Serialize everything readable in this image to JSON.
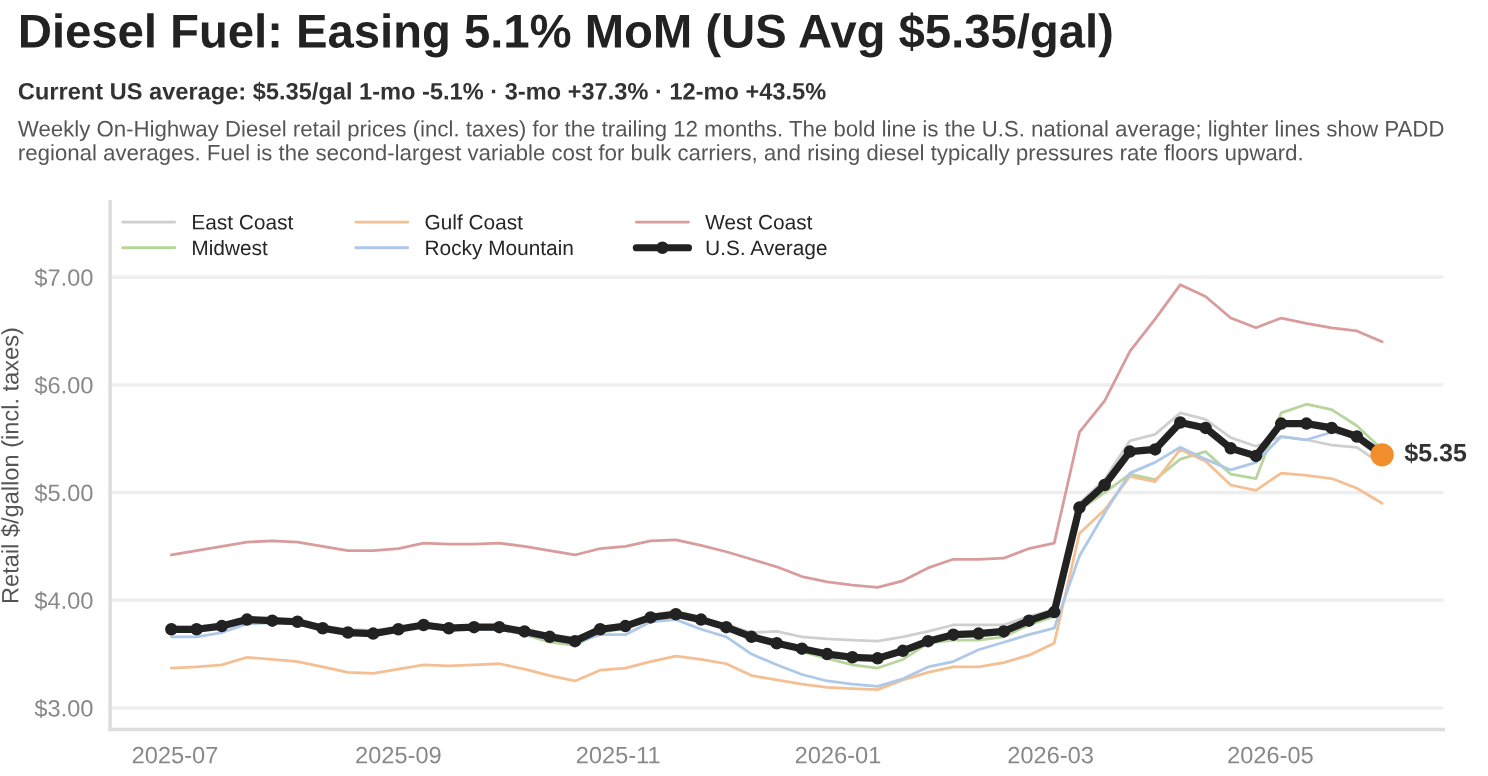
{
  "chart_data": {
    "type": "line",
    "title": "Diesel Fuel: Easing 5.1% MoM (US Avg $5.35/gal)",
    "subtitle": "Current US average: $5.35/gal 1-mo -5.1% · 3-mo +37.3% · 12-mo +43.5%",
    "annotations": [
      "Weekly On-Highway Diesel retail prices (incl. taxes) for the trailing 12 months. The bold line is the U.S. national average; lighter lines show PADD regional averages. Fuel is the second-largest variable cost for bulk carriers, and rising diesel typically pressures rate floors upward."
    ],
    "ylabel": "Retail $/gallon (incl. taxes)",
    "x": [
      "2025-06-30",
      "2025-07-07",
      "2025-07-14",
      "2025-07-21",
      "2025-07-28",
      "2025-08-04",
      "2025-08-11",
      "2025-08-18",
      "2025-08-25",
      "2025-09-01",
      "2025-09-08",
      "2025-09-15",
      "2025-09-22",
      "2025-09-29",
      "2025-10-06",
      "2025-10-13",
      "2025-10-20",
      "2025-10-27",
      "2025-11-03",
      "2025-11-10",
      "2025-11-17",
      "2025-11-24",
      "2025-12-01",
      "2025-12-08",
      "2025-12-15",
      "2025-12-22",
      "2025-12-29",
      "2026-01-05",
      "2026-01-12",
      "2026-01-19",
      "2026-01-26",
      "2026-02-02",
      "2026-02-09",
      "2026-02-16",
      "2026-02-23",
      "2026-03-02",
      "2026-03-09",
      "2026-03-16",
      "2026-03-23",
      "2026-03-30",
      "2026-04-06",
      "2026-04-13",
      "2026-04-20",
      "2026-04-27",
      "2026-05-04",
      "2026-05-11",
      "2026-05-18",
      "2026-05-25",
      "2026-06-01"
    ],
    "series": [
      {
        "name": "East Coast",
        "color": "#cfcfcf",
        "values": [
          3.75,
          3.75,
          3.78,
          3.83,
          3.82,
          3.81,
          3.76,
          3.73,
          3.72,
          3.75,
          3.78,
          3.76,
          3.76,
          3.76,
          3.72,
          3.68,
          3.65,
          3.74,
          3.77,
          3.85,
          3.87,
          3.83,
          3.77,
          3.7,
          3.71,
          3.66,
          3.64,
          3.63,
          3.62,
          3.66,
          3.71,
          3.77,
          3.77,
          3.77,
          3.85,
          3.91,
          4.9,
          5.12,
          5.48,
          5.54,
          5.74,
          5.68,
          5.51,
          5.43,
          5.52,
          5.49,
          5.44,
          5.42,
          5.26
        ]
      },
      {
        "name": "Midwest",
        "color": "#b7d59c",
        "values": [
          3.72,
          3.73,
          3.75,
          3.8,
          3.8,
          3.79,
          3.74,
          3.71,
          3.71,
          3.73,
          3.76,
          3.74,
          3.74,
          3.74,
          3.68,
          3.61,
          3.58,
          3.7,
          3.74,
          3.86,
          3.9,
          3.84,
          3.76,
          3.67,
          3.59,
          3.52,
          3.46,
          3.4,
          3.37,
          3.45,
          3.6,
          3.63,
          3.63,
          3.66,
          3.77,
          3.85,
          4.84,
          5.0,
          5.17,
          5.12,
          5.31,
          5.38,
          5.17,
          5.13,
          5.74,
          5.82,
          5.77,
          5.62,
          5.4
        ]
      },
      {
        "name": "Gulf Coast",
        "color": "#f5bf94",
        "values": [
          3.37,
          3.38,
          3.4,
          3.47,
          3.45,
          3.43,
          3.38,
          3.33,
          3.32,
          3.36,
          3.4,
          3.39,
          3.4,
          3.41,
          3.36,
          3.3,
          3.25,
          3.35,
          3.37,
          3.43,
          3.48,
          3.45,
          3.41,
          3.3,
          3.26,
          3.22,
          3.19,
          3.18,
          3.17,
          3.26,
          3.33,
          3.38,
          3.38,
          3.42,
          3.49,
          3.6,
          4.62,
          4.84,
          5.15,
          5.1,
          5.4,
          5.29,
          5.07,
          5.02,
          5.18,
          5.16,
          5.13,
          5.04,
          4.9
        ]
      },
      {
        "name": "Rocky Mountain",
        "color": "#adc8e8",
        "values": [
          3.66,
          3.66,
          3.7,
          3.78,
          3.79,
          3.78,
          3.73,
          3.7,
          3.7,
          3.72,
          3.76,
          3.73,
          3.73,
          3.73,
          3.68,
          3.64,
          3.6,
          3.68,
          3.68,
          3.8,
          3.82,
          3.73,
          3.66,
          3.5,
          3.4,
          3.31,
          3.25,
          3.22,
          3.2,
          3.27,
          3.38,
          3.43,
          3.54,
          3.61,
          3.68,
          3.74,
          4.41,
          4.81,
          5.18,
          5.28,
          5.42,
          5.31,
          5.21,
          5.28,
          5.52,
          5.49,
          5.56,
          5.52,
          5.4
        ]
      },
      {
        "name": "West Coast",
        "color": "#d99c9c",
        "values": [
          4.42,
          4.46,
          4.5,
          4.54,
          4.55,
          4.54,
          4.5,
          4.46,
          4.46,
          4.48,
          4.53,
          4.52,
          4.52,
          4.53,
          4.5,
          4.46,
          4.42,
          4.48,
          4.5,
          4.55,
          4.56,
          4.51,
          4.45,
          4.38,
          4.31,
          4.22,
          4.17,
          4.14,
          4.12,
          4.18,
          4.3,
          4.38,
          4.38,
          4.39,
          4.48,
          4.53,
          5.56,
          5.85,
          6.31,
          6.61,
          6.93,
          6.82,
          6.62,
          6.53,
          6.62,
          6.57,
          6.53,
          6.5,
          6.4
        ]
      },
      {
        "name": "U.S. Average",
        "color": "#222222",
        "marker": "circle",
        "values": [
          3.73,
          3.73,
          3.76,
          3.82,
          3.81,
          3.8,
          3.74,
          3.7,
          3.69,
          3.73,
          3.77,
          3.74,
          3.75,
          3.75,
          3.71,
          3.66,
          3.62,
          3.73,
          3.76,
          3.84,
          3.87,
          3.82,
          3.75,
          3.66,
          3.6,
          3.55,
          3.5,
          3.47,
          3.46,
          3.53,
          3.62,
          3.68,
          3.69,
          3.71,
          3.81,
          3.89,
          4.86,
          5.07,
          5.38,
          5.4,
          5.65,
          5.6,
          5.41,
          5.34,
          5.64,
          5.64,
          5.6,
          5.52,
          5.35
        ]
      },
      {
        "type": "scatter",
        "color": "#f28e2b",
        "x": [
          "2026-06-01"
        ],
        "values": [
          5.35
        ],
        "value_labels": [
          "$5.35"
        ]
      }
    ],
    "xlim": [
      "2025-06-13",
      "2026-06-18"
    ],
    "xticks": [
      {
        "value": "2025-07-01",
        "label": "2025-07"
      },
      {
        "value": "2025-09-01",
        "label": "2025-09"
      },
      {
        "value": "2025-11-01",
        "label": "2025-11"
      },
      {
        "value": "2026-01-01",
        "label": "2026-01"
      },
      {
        "value": "2026-03-01",
        "label": "2026-03"
      },
      {
        "value": "2026-05-01",
        "label": "2026-05"
      }
    ],
    "ylim": [
      2.8,
      7.7
    ],
    "yticks": [
      {
        "value": 3,
        "label": "$3.00"
      },
      {
        "value": 4,
        "label": "$4.00"
      },
      {
        "value": 5,
        "label": "$5.00"
      },
      {
        "value": 6,
        "label": "$6.00"
      },
      {
        "value": 7,
        "label": "$7.00"
      }
    ],
    "grid": "y",
    "legend": "top left"
  }
}
